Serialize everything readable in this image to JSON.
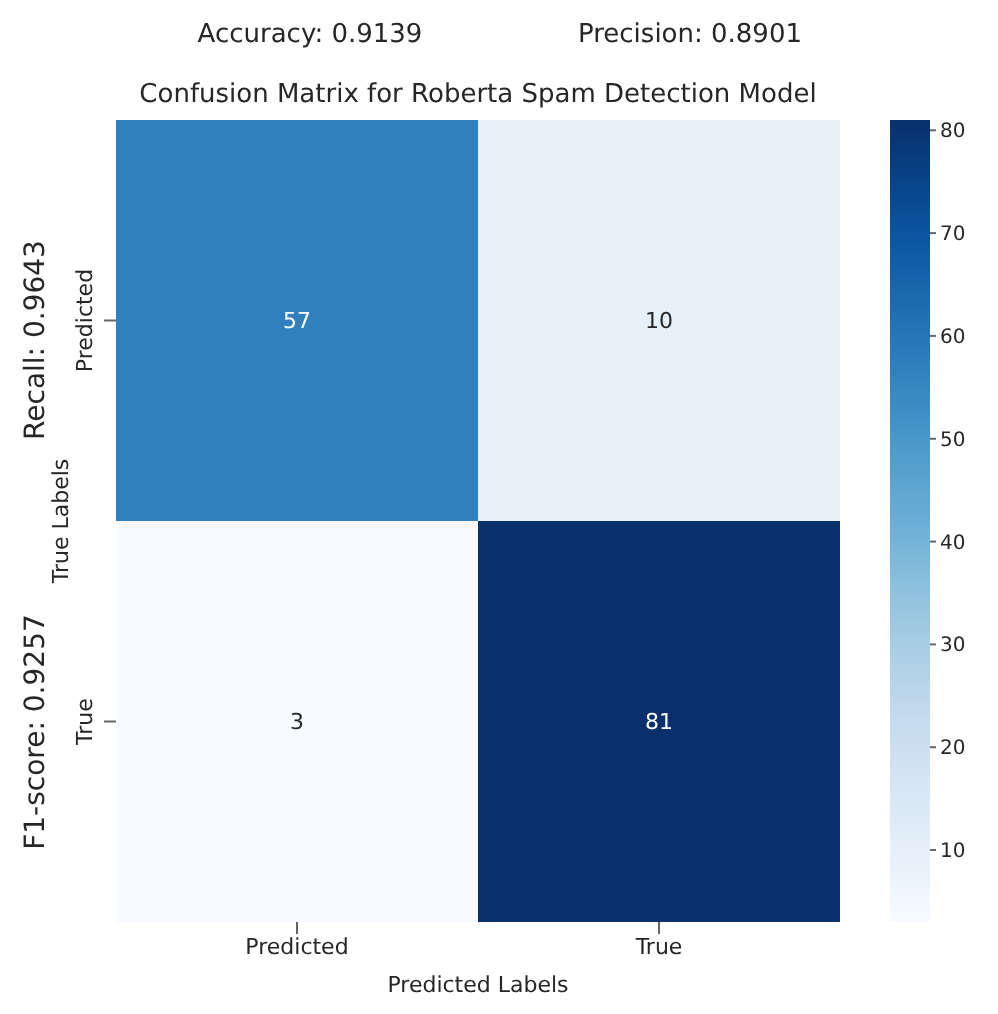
{
  "chart_data": {
    "type": "heatmap",
    "title": "Confusion Matrix for Roberta Spam Detection Model",
    "xlabel": "Predicted Labels",
    "ylabel": "True Labels",
    "categories": [
      "Predicted",
      "True"
    ],
    "y_categories": [
      "Predicted",
      "True"
    ],
    "cells": [
      [
        57,
        10
      ],
      [
        3,
        81
      ]
    ],
    "data_labels": true,
    "clim": [
      3,
      81
    ],
    "cticks": [
      10,
      20,
      30,
      40,
      50,
      60,
      70,
      80
    ],
    "annotations": [
      "Accuracy: 0.9139",
      "Precision: 0.8901",
      "Recall: 0.9643",
      "F1-score: 0.9257"
    ]
  }
}
